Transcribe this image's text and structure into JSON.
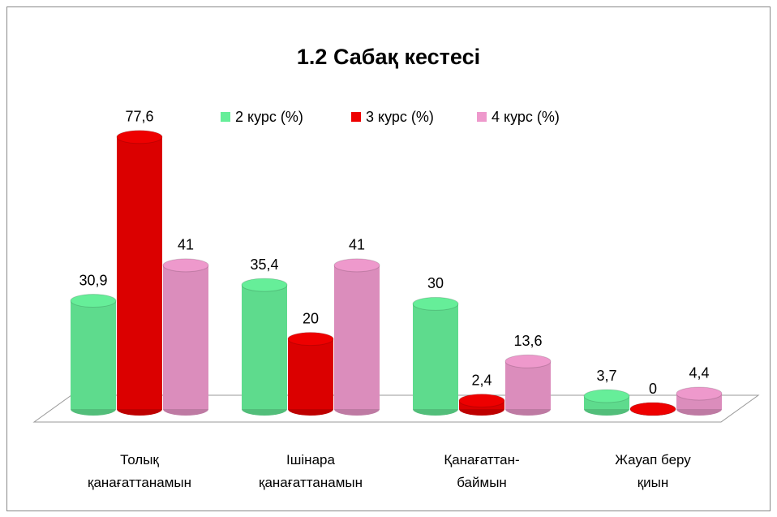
{
  "chart_data": {
    "type": "bar",
    "title": "1.2 Сабақ кестесі",
    "categories": [
      "Толық\nқанағаттанамын",
      "Ішінара\nқанағаттанамын",
      "Қанағаттан-\nбаймын",
      "Жауап беру\nқиын"
    ],
    "series": [
      {
        "name": "2 курс (%)",
        "color": "#66ee99",
        "values": [
          30.9,
          35.4,
          30,
          3.7
        ],
        "value_labels": [
          "30,9",
          "35,4",
          "30",
          "3,7"
        ]
      },
      {
        "name": "3 курс (%)",
        "color": "#ee0000",
        "values": [
          77.6,
          20,
          2.4,
          0
        ],
        "value_labels": [
          "77,6",
          "20",
          "2,4",
          "0"
        ]
      },
      {
        "name": "4 курс (%)",
        "color": "#ee99cc",
        "values": [
          41,
          41,
          13.6,
          4.4
        ],
        "value_labels": [
          "41",
          "41",
          "13,6",
          "4,4"
        ]
      }
    ]
  }
}
